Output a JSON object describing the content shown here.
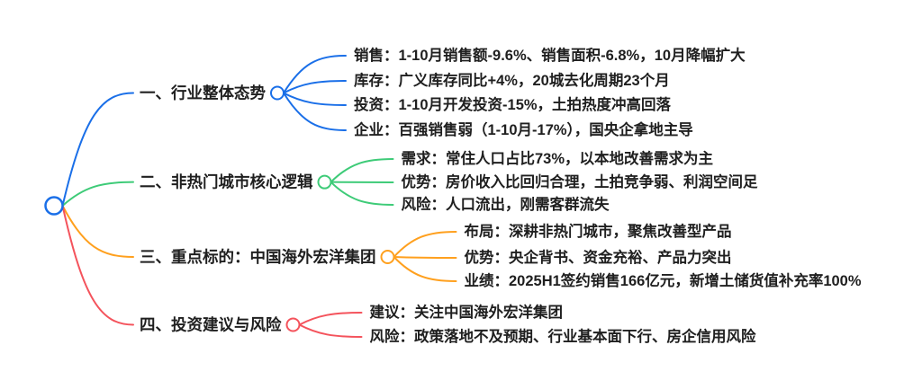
{
  "canvas": {
    "background_color": "#ffffff",
    "text_color": "#1f1f1f"
  },
  "mindmap": {
    "root": {
      "color": "#1a6fe8"
    },
    "branches": [
      {
        "label": "一、行业整体态势",
        "color": "#1a6fe8",
        "children": [
          "销售：1-10月销售额-9.6%、销售面积-6.8%，10月降幅扩大",
          "库存：广义库存同比+4%，20城去化周期23个月",
          "投资：1-10月开发投资-15%，土拍热度冲高回落",
          "企业：百强销售弱（1-10月-17%），国央企拿地主导"
        ]
      },
      {
        "label": "二、非热门城市核心逻辑",
        "color": "#3ecb78",
        "children": [
          "需求：常住人口占比73%，以本地改善需求为主",
          "优势：房价收入比回归合理，土拍竞争弱、利润空间足",
          "风险：人口流出，刚需客群流失"
        ]
      },
      {
        "label": "三、重点标的：中国海外宏洋集团",
        "color": "#ffa01e",
        "children": [
          "布局：深耕非热门城市，聚焦改善型产品",
          "优势：央企背书、资金充裕、产品力突出",
          "业绩：2025H1签约销售166亿元，新增土储货值补充率100%"
        ]
      },
      {
        "label": "四、投资建议与风险",
        "color": "#f4535c",
        "children": [
          "建议：关注中国海外宏洋集团",
          "风险：政策落地不及预期、行业基本面下行、房企信用风险"
        ]
      }
    ]
  }
}
